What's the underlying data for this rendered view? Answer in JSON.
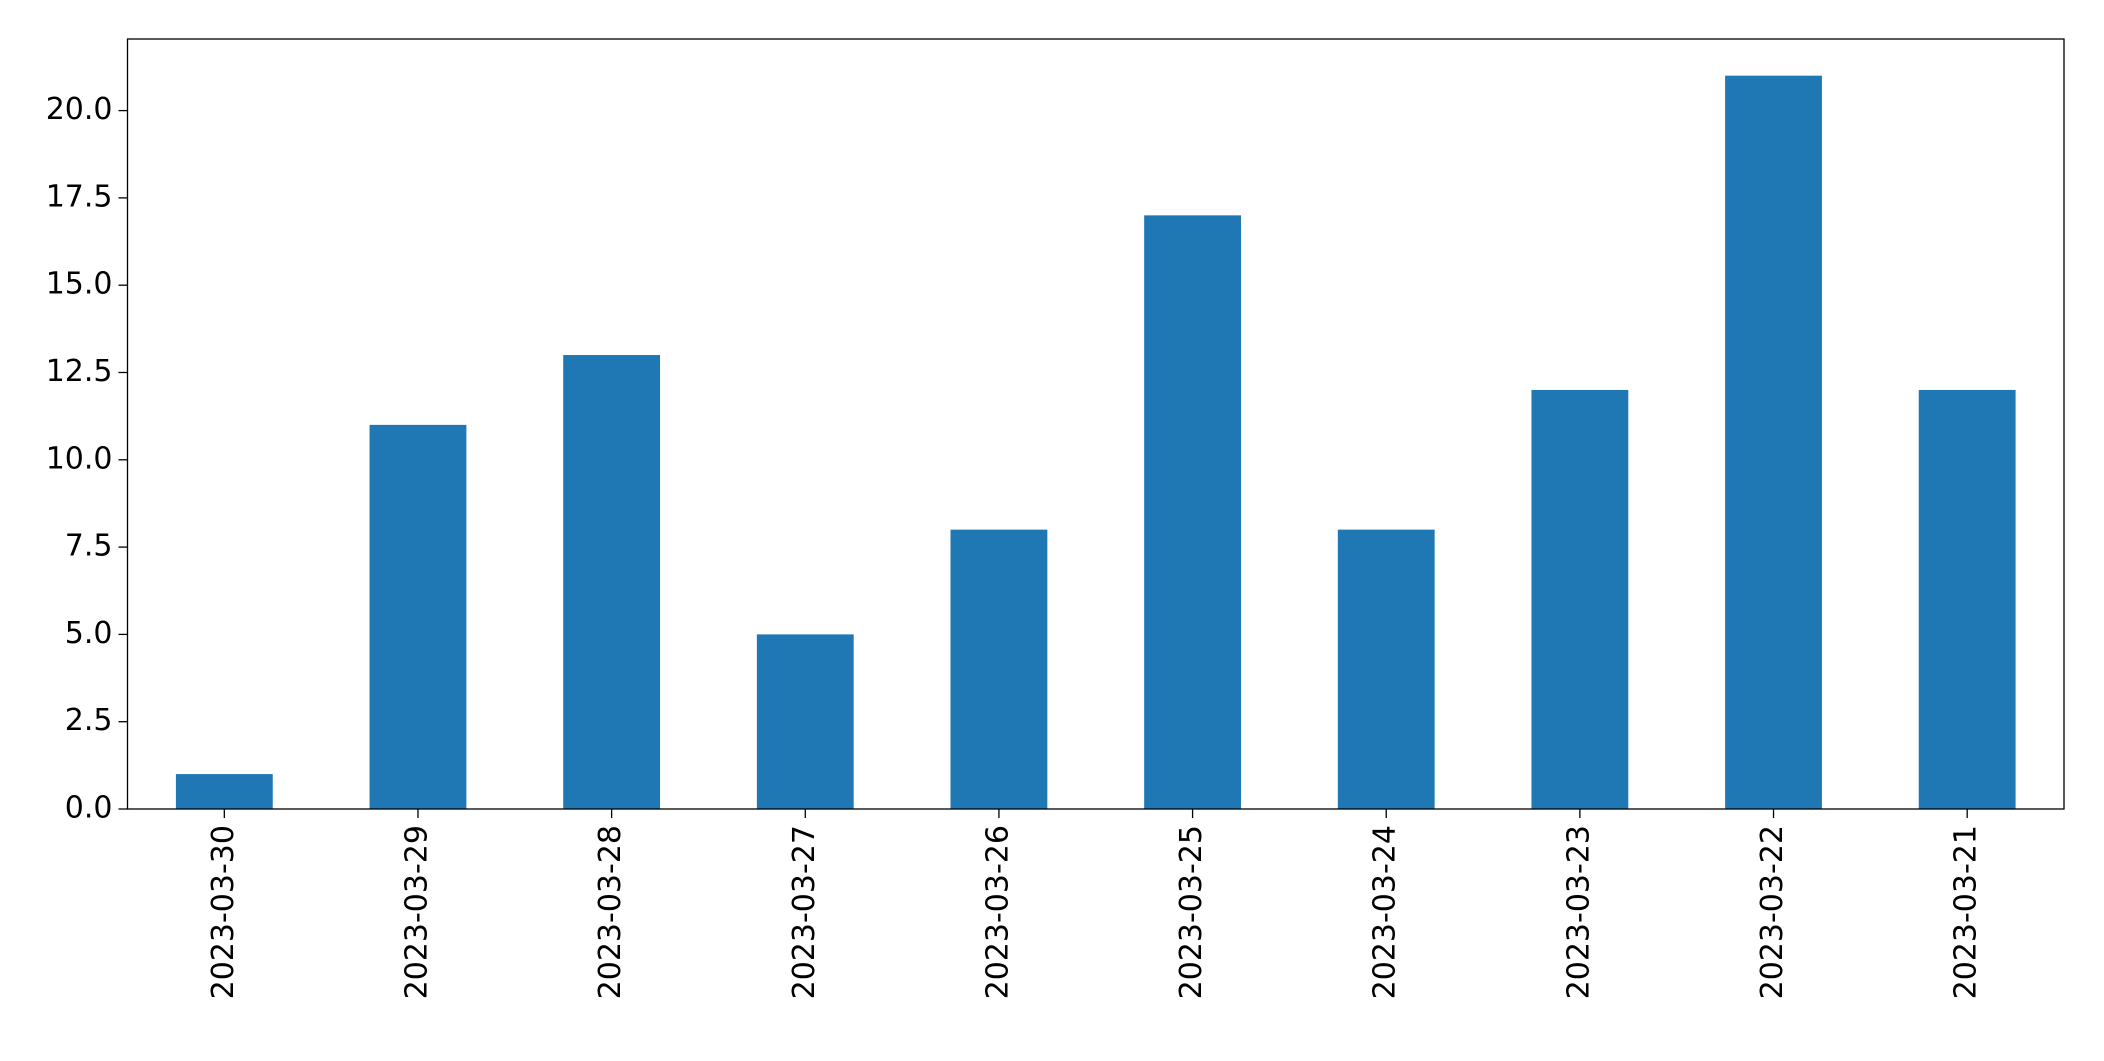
{
  "chart_data": {
    "type": "bar",
    "categories": [
      "2023-03-30",
      "2023-03-29",
      "2023-03-28",
      "2023-03-27",
      "2023-03-26",
      "2023-03-25",
      "2023-03-24",
      "2023-03-23",
      "2023-03-22",
      "2023-03-21"
    ],
    "values": [
      1,
      11,
      13,
      5,
      8,
      17,
      8,
      12,
      21,
      12
    ],
    "color": "#1f77b4",
    "ylim": [
      0,
      22.05
    ],
    "yticks": [
      {
        "value": 0,
        "label": "0.0"
      },
      2.5,
      {
        "value": 5,
        "label": "5.0"
      },
      7.5,
      {
        "value": 10,
        "label": "10.0"
      },
      12.5,
      {
        "value": 15,
        "label": "15.0"
      },
      17.5,
      {
        "value": 20,
        "label": "20.0"
      }
    ],
    "grid": false
  }
}
